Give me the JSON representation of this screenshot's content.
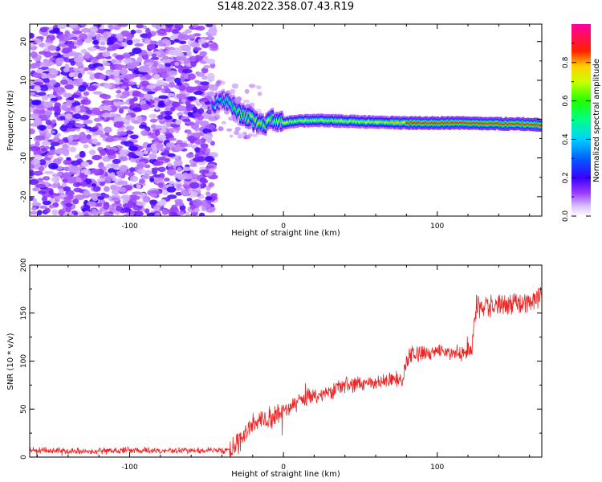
{
  "title": "S148.2022.358.07.43.R19",
  "chart_data": [
    {
      "type": "heatmap",
      "title": "S148.2022.358.07.43.R19",
      "xlabel": "Height of straight line (km)",
      "ylabel": "Frequency (Hz)",
      "xlim": [
        -165,
        168
      ],
      "ylim": [
        -25,
        24.5
      ],
      "xticks": [
        -100,
        0,
        100
      ],
      "yticks": [
        -20,
        -10,
        0,
        10,
        20
      ],
      "colorbar": {
        "label": "Normalized spectral amplitude",
        "range": [
          0,
          1
        ],
        "ticks": [
          0.0,
          0.2,
          0.4,
          0.6,
          0.8
        ],
        "colormap": "white-purple-blue-cyan-green-yellow-red-magenta"
      },
      "regions": [
        {
          "name": "noise",
          "x_range": [
            -165,
            -45
          ],
          "freq_range": [
            -25,
            24.5
          ],
          "amplitude": "low (0.0-0.2)"
        },
        {
          "name": "signal_onset",
          "x_range": [
            -45,
            -30
          ],
          "freq_center": 4,
          "amplitude": "medium (0.3-0.6)"
        },
        {
          "name": "signal",
          "x_range": [
            -30,
            168
          ],
          "freq_center": -1,
          "amplitude": "high (0.7-1.0)"
        }
      ],
      "signal_track": {
        "x": [
          -46,
          -42,
          -38,
          -34,
          -30,
          -26,
          -22,
          -18,
          -14,
          -10,
          -6,
          -2,
          0,
          10,
          20,
          40,
          60,
          80,
          100,
          120,
          140,
          160,
          168
        ],
        "freq": [
          3.5,
          4.5,
          5,
          4,
          2,
          1,
          0.5,
          -1,
          -1.5,
          -1,
          0,
          -1,
          -1,
          -0.5,
          -0.3,
          -0.5,
          -0.8,
          -1,
          -1,
          -1,
          -1.2,
          -1.3,
          -1.5
        ]
      },
      "grid": false
    },
    {
      "type": "line",
      "xlabel": "Height of straight line (km)",
      "ylabel": "SNR (10 * v/v)",
      "xlim": [
        -165,
        168
      ],
      "ylim": [
        0,
        200
      ],
      "xticks": [
        -100,
        0,
        100
      ],
      "yticks": [
        0,
        50,
        100,
        150,
        200
      ],
      "color": "#ee2222",
      "series": [
        {
          "x": [
            -165,
            -145,
            -125,
            -105,
            -85,
            -65,
            -45,
            -35,
            -30,
            -25,
            -20,
            -15,
            -10,
            -5,
            0,
            5,
            10,
            20,
            30,
            40,
            50,
            60,
            70,
            78,
            80,
            90,
            100,
            110,
            120,
            122,
            125,
            135,
            145,
            155,
            165,
            168
          ],
          "values": [
            7,
            7,
            6,
            7,
            7,
            7,
            7,
            8,
            15,
            25,
            32,
            38,
            40,
            45,
            48,
            52,
            58,
            63,
            68,
            74,
            76,
            78,
            80,
            80,
            105,
            108,
            110,
            110,
            110,
            110,
            155,
            158,
            160,
            162,
            165,
            166
          ]
        }
      ],
      "grid": false
    }
  ]
}
